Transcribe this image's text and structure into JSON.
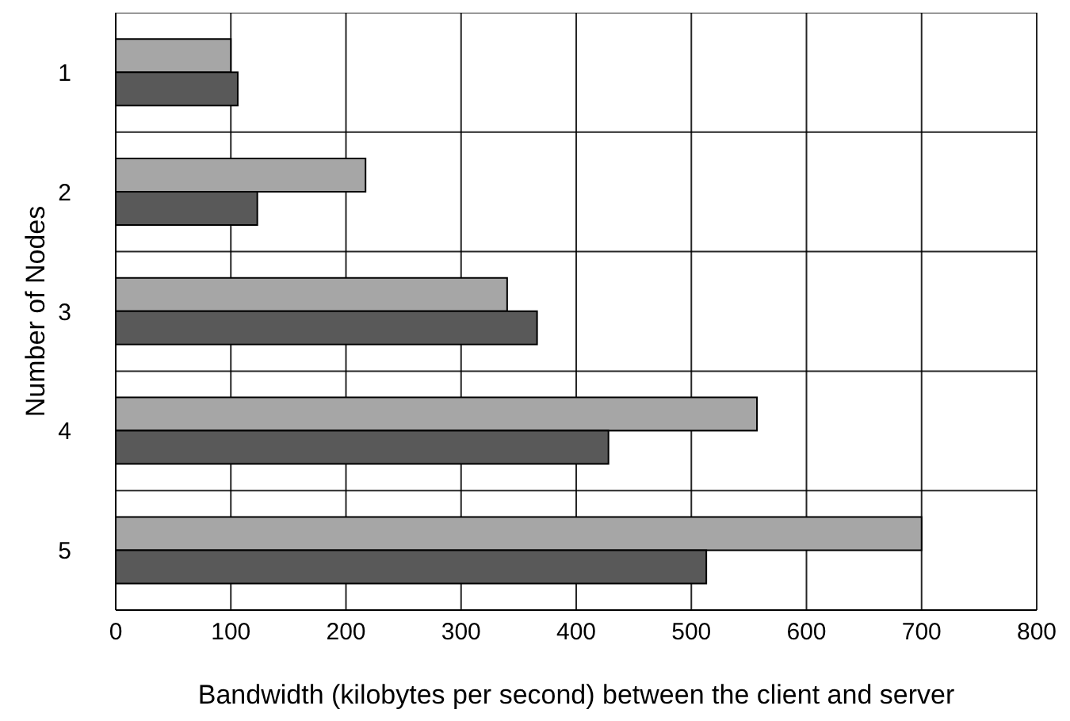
{
  "chart_data": {
    "type": "bar",
    "orientation": "horizontal",
    "xlabel": "Bandwidth (kilobytes per second) between the client and server",
    "ylabel": "Number of Nodes",
    "categories": [
      "1",
      "2",
      "3",
      "4",
      "5"
    ],
    "series": [
      {
        "color": "#a6a6a6",
        "values": [
          100,
          217,
          340,
          557,
          700
        ]
      },
      {
        "color": "#595959",
        "values": [
          106,
          123,
          366,
          428,
          513
        ]
      }
    ],
    "xlim": [
      0,
      800
    ],
    "xticks": [
      0,
      100,
      200,
      300,
      400,
      500,
      600,
      700,
      800
    ],
    "grid": true
  }
}
